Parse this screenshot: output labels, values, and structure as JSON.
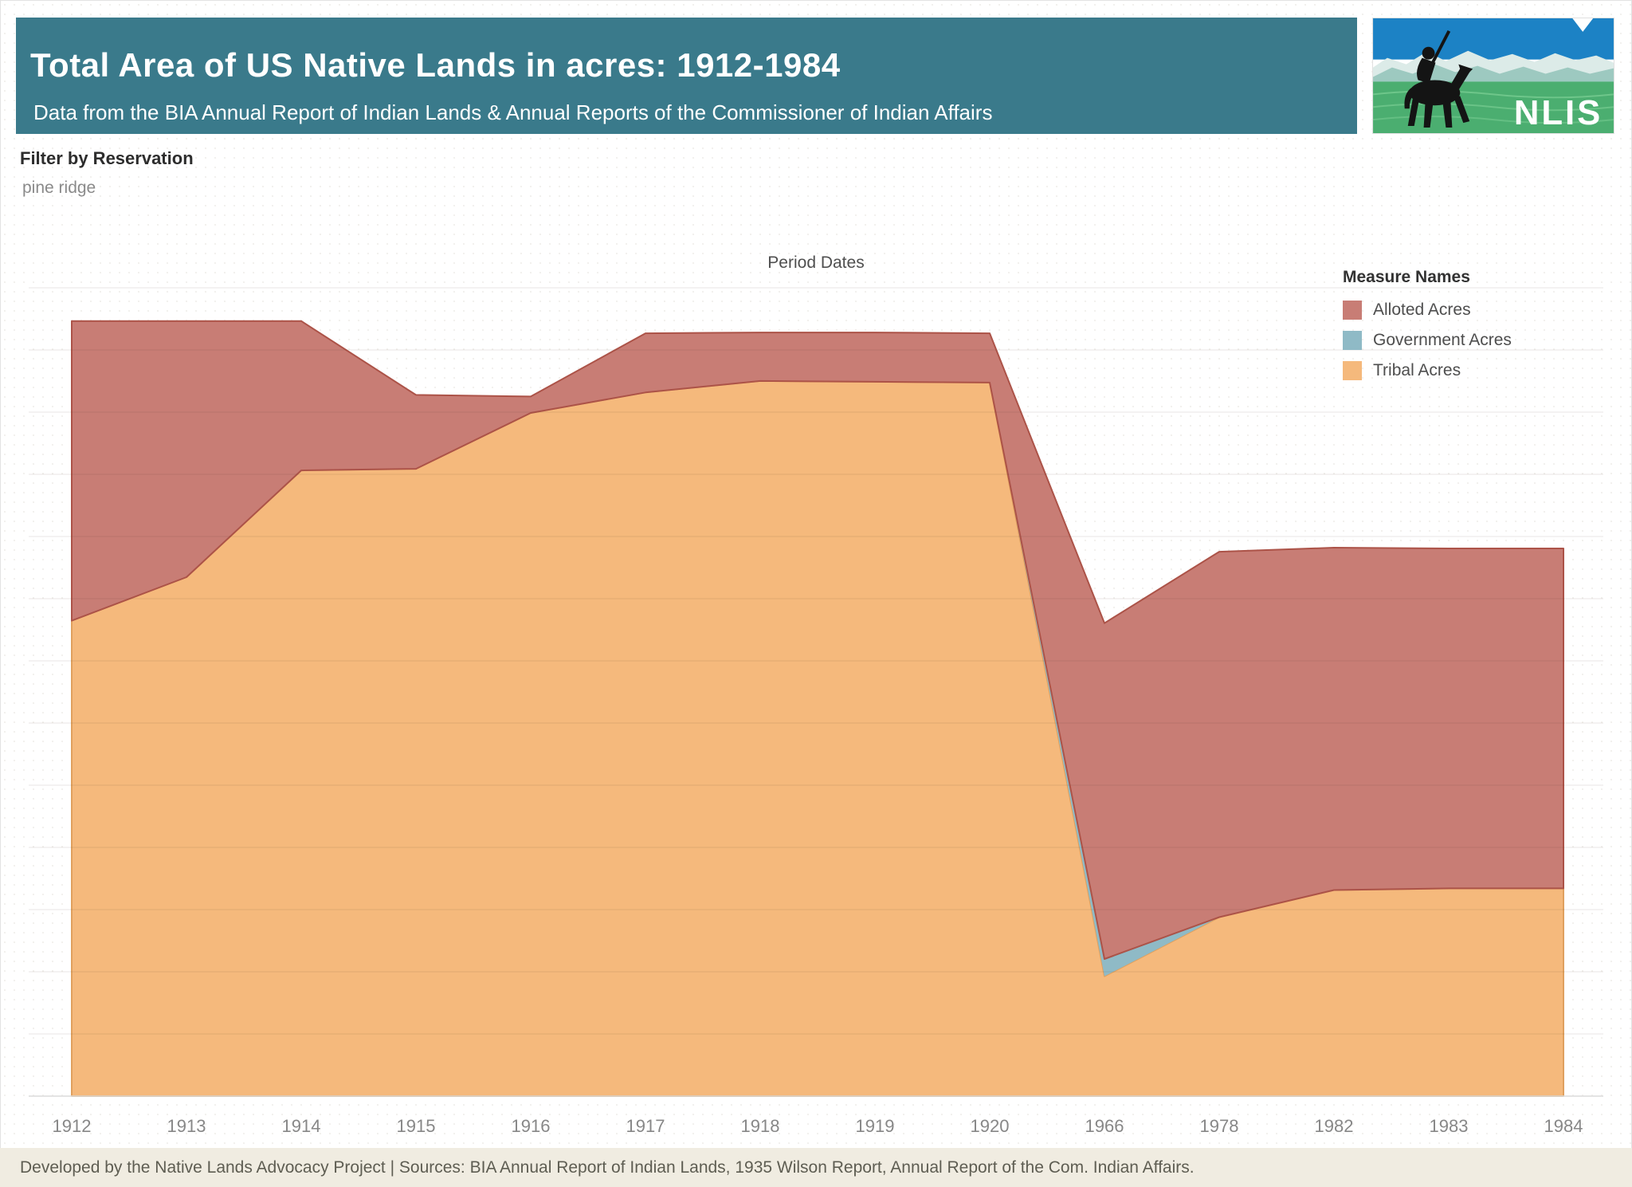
{
  "header": {
    "title": "Total Area of US Native Lands in acres: 1912-1984",
    "subtitle": "Data from the BIA Annual Report of Indian Lands & Annual Reports of the Commissioner of Indian Affairs",
    "bg_color": "#3a7a8b",
    "text_color": "#ffffff"
  },
  "logo": {
    "text": "NLIS"
  },
  "filter": {
    "label": "Filter by Reservation",
    "value": "pine ridge"
  },
  "legend": {
    "title": "Measure Names",
    "items": [
      {
        "label": "Alloted Acres",
        "color": "#c87d75"
      },
      {
        "label": "Government Acres",
        "color": "#8fbac6"
      },
      {
        "label": "Tribal Acres",
        "color": "#f5b97c"
      }
    ]
  },
  "footer": {
    "text": "Developed by the Native Lands Advocacy Project | Sources: BIA Annual Report of Indian Lands, 1935 Wilson Report, Annual Report of the Com. Indian Affairs."
  },
  "chart_data": {
    "type": "area",
    "stacked": true,
    "title": "Period Dates",
    "xlabel": "Period Dates",
    "ylabel": "",
    "y_axis_note": "y axis is unlabeled in the source image; values are estimated percent of plot height",
    "ylim": [
      0,
      100
    ],
    "grid": "horizontal",
    "legend_position": "top-right",
    "categories": [
      "1912",
      "1913",
      "1914",
      "1915",
      "1916",
      "1917",
      "1918",
      "1919",
      "1920",
      "1966",
      "1978",
      "1982",
      "1983",
      "1984"
    ],
    "series": [
      {
        "name": "Tribal Acres",
        "color": "#f5b97c",
        "stroke": "#e0a05e",
        "values": [
          57.9,
          63.2,
          76.2,
          76.4,
          83.2,
          85.7,
          87.1,
          87.0,
          86.9,
          14.6,
          21.8,
          25.1,
          25.3,
          25.3
        ]
      },
      {
        "name": "Government Acres",
        "color": "#8fbac6",
        "stroke": "none",
        "values": [
          0,
          0,
          0,
          0,
          0,
          0,
          0,
          0,
          0,
          2.1,
          0,
          0,
          0,
          0
        ]
      },
      {
        "name": "Alloted Acres",
        "color": "#c87d75",
        "stroke": "#ac5348",
        "values": [
          36.5,
          31.2,
          18.2,
          9.0,
          2.0,
          7.2,
          5.9,
          6.0,
          6.0,
          40.9,
          44.5,
          41.7,
          41.4,
          41.4
        ]
      }
    ],
    "stack_order_bottom_to_top": [
      "Tribal Acres",
      "Government Acres",
      "Alloted Acres"
    ]
  }
}
